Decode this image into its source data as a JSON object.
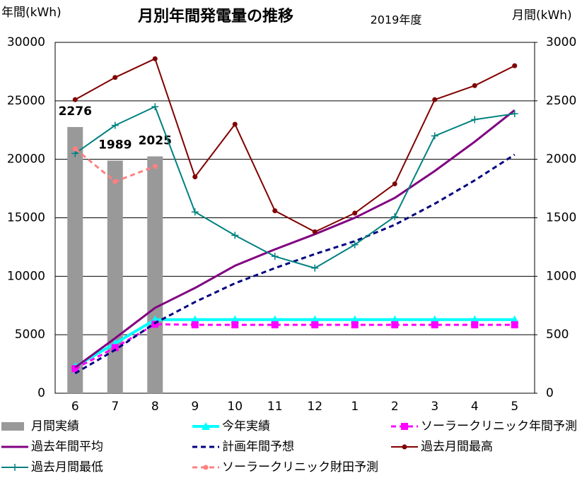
{
  "chart_data": {
    "type": "combo",
    "title": "月別年間発電量の推移",
    "subtitle": "2019年度",
    "y_label": "年間(kWh)",
    "y2_label": "月間(kWh)",
    "categories": [
      "6",
      "7",
      "8",
      "9",
      "10",
      "11",
      "12",
      "1",
      "2",
      "3",
      "4",
      "5"
    ],
    "ylim": [
      0,
      30000
    ],
    "yticks": [
      0,
      5000,
      10000,
      15000,
      20000,
      25000,
      30000
    ],
    "y2lim": [
      0,
      3000
    ],
    "y2ticks": [
      0,
      500,
      1000,
      1500,
      2000,
      2500,
      3000
    ],
    "grid": true,
    "legend": "bottom",
    "series": [
      {
        "name": "月間実績",
        "type": "bar",
        "axis": "y2",
        "color": "#999999",
        "label_color": "#a6a6a6",
        "values": [
          2276,
          1989,
          2025,
          null,
          null,
          null,
          null,
          null,
          null,
          null,
          null,
          null
        ]
      },
      {
        "name": "今年実績",
        "type": "line",
        "color": "#00ffff",
        "width": 4,
        "marker": "triangle",
        "dash": false,
        "values": [
          2276,
          4265,
          6290,
          6290,
          6290,
          6290,
          6290,
          6290,
          6290,
          6290,
          6290,
          6290
        ]
      },
      {
        "name": "ソーラークリニック年間予測",
        "type": "line",
        "color": "#ff00ff",
        "width": 3,
        "marker": "square",
        "dash": true,
        "values": [
          2100,
          3900,
          5900,
          5850,
          5850,
          5850,
          5850,
          5850,
          5850,
          5850,
          5850,
          5850
        ]
      },
      {
        "name": "過去年間平均",
        "type": "line",
        "color": "#800080",
        "width": 3,
        "marker": "none",
        "dash": false,
        "values": [
          2200,
          4700,
          7300,
          9000,
          10900,
          12300,
          13600,
          15000,
          16700,
          19000,
          21500,
          24200
        ]
      },
      {
        "name": "計画年間予想",
        "type": "line",
        "color": "#000080",
        "width": 3,
        "marker": "none",
        "dash": true,
        "values": [
          1700,
          3700,
          6000,
          7800,
          9400,
          10700,
          11900,
          13000,
          14400,
          16200,
          18200,
          20400
        ]
      },
      {
        "name": "過去月間最高",
        "type": "line",
        "axis": "y2",
        "color": "#800000",
        "width": 2,
        "marker": "circle",
        "dash": false,
        "values": [
          2510,
          2700,
          2860,
          1850,
          2300,
          1560,
          1380,
          1540,
          1790,
          2510,
          2630,
          2800
        ]
      },
      {
        "name": "過去月間最低",
        "type": "line",
        "axis": "y2",
        "color": "#008080",
        "width": 2,
        "marker": "plus",
        "dash": false,
        "values": [
          2050,
          2290,
          2450,
          1550,
          1350,
          1170,
          1070,
          1270,
          1510,
          2200,
          2340,
          2390
        ]
      },
      {
        "name": "ソーラークリニック財田予測",
        "type": "line",
        "axis": "y2",
        "color": "#ff8080",
        "width": 3,
        "marker": "circle",
        "dash": true,
        "values": [
          2090,
          1810,
          1940,
          null,
          null,
          null,
          null,
          null,
          null,
          null,
          null,
          null
        ]
      }
    ]
  }
}
